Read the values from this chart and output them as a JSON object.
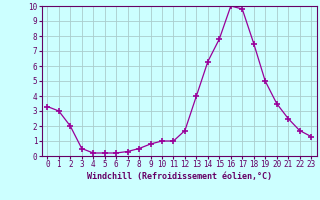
{
  "x": [
    0,
    1,
    2,
    3,
    4,
    5,
    6,
    7,
    8,
    9,
    10,
    11,
    12,
    13,
    14,
    15,
    16,
    17,
    18,
    19,
    20,
    21,
    22,
    23
  ],
  "y": [
    3.3,
    3.0,
    2.0,
    0.5,
    0.2,
    0.2,
    0.2,
    0.3,
    0.5,
    0.8,
    1.0,
    1.0,
    1.7,
    4.0,
    6.3,
    7.8,
    10.0,
    9.8,
    7.5,
    5.0,
    3.5,
    2.5,
    1.7,
    1.3
  ],
  "line_color": "#990099",
  "marker": "+",
  "marker_size": 4,
  "bg_color": "#ccffff",
  "grid_color": "#aacccc",
  "xlabel": "Windchill (Refroidissement éolien,°C)",
  "xlabel_color": "#660066",
  "xlim": [
    -0.5,
    23.5
  ],
  "ylim": [
    0,
    10
  ],
  "xticks": [
    0,
    1,
    2,
    3,
    4,
    5,
    6,
    7,
    8,
    9,
    10,
    11,
    12,
    13,
    14,
    15,
    16,
    17,
    18,
    19,
    20,
    21,
    22,
    23
  ],
  "yticks": [
    0,
    1,
    2,
    3,
    4,
    5,
    6,
    7,
    8,
    9,
    10
  ],
  "tick_color": "#660066",
  "spine_color": "#660066",
  "tick_fontsize": 5.5,
  "xlabel_fontsize": 6,
  "xlabel_fontweight": "bold"
}
